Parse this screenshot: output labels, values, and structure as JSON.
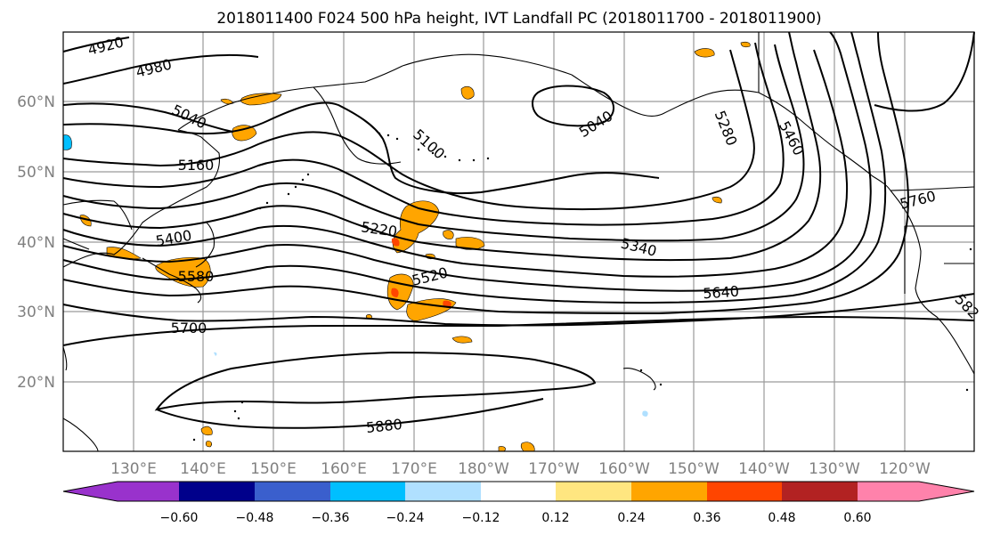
{
  "title": "2018011400 F024 500 hPa height, IVT Landfall PC (2018011700 - 2018011900)",
  "lat_labels": [
    "60°N",
    "50°N",
    "40°N",
    "30°N",
    "20°N"
  ],
  "lon_labels": [
    "130°E",
    "140°E",
    "150°E",
    "160°E",
    "170°E",
    "180°W",
    "170°W",
    "160°W",
    "150°W",
    "140°W",
    "130°W",
    "120°W"
  ],
  "contour_labels": [
    "4920",
    "4980",
    "5040",
    "5100",
    "5040",
    "5160",
    "5280",
    "5460",
    "5760",
    "5400",
    "5220",
    "5340",
    "5580",
    "5520",
    "5640",
    "5700",
    "5880",
    "582"
  ],
  "colorbar": {
    "ticks": [
      "−0.60",
      "−0.48",
      "−0.36",
      "−0.24",
      "−0.12",
      "0.12",
      "0.24",
      "0.36",
      "0.48",
      "0.60"
    ],
    "colors": [
      "#9932cc",
      "#00008b",
      "#3a5fcd",
      "#00bfff",
      "#b0e0ff",
      "#ffffff",
      "#ffe680",
      "#ffa500",
      "#ff4500",
      "#b22222",
      "#ff82ab"
    ]
  }
}
